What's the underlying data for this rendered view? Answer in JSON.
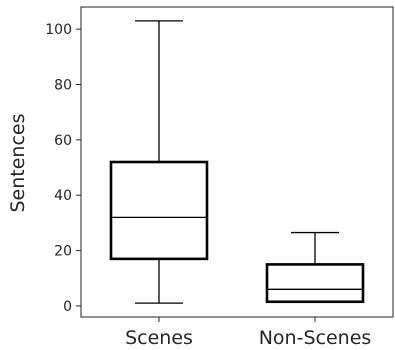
{
  "chart_data": {
    "type": "box",
    "title": "",
    "xlabel": "",
    "ylabel": "Sentences",
    "ylim": [
      -4,
      108
    ],
    "yticks": [
      0,
      20,
      40,
      60,
      80,
      100
    ],
    "grid": false,
    "categories": [
      "Scenes",
      "Non-Scenes"
    ],
    "boxes": [
      {
        "category": "Scenes",
        "whisker_low": 1,
        "q1": 17,
        "median": 32,
        "q3": 52,
        "whisker_high": 103
      },
      {
        "category": "Non-Scenes",
        "whisker_low": 1.5,
        "q1": 1.5,
        "median": 6,
        "q3": 15,
        "whisker_high": 26.5
      }
    ],
    "colors": {
      "stroke": "#000000",
      "axis": "#262626"
    }
  }
}
